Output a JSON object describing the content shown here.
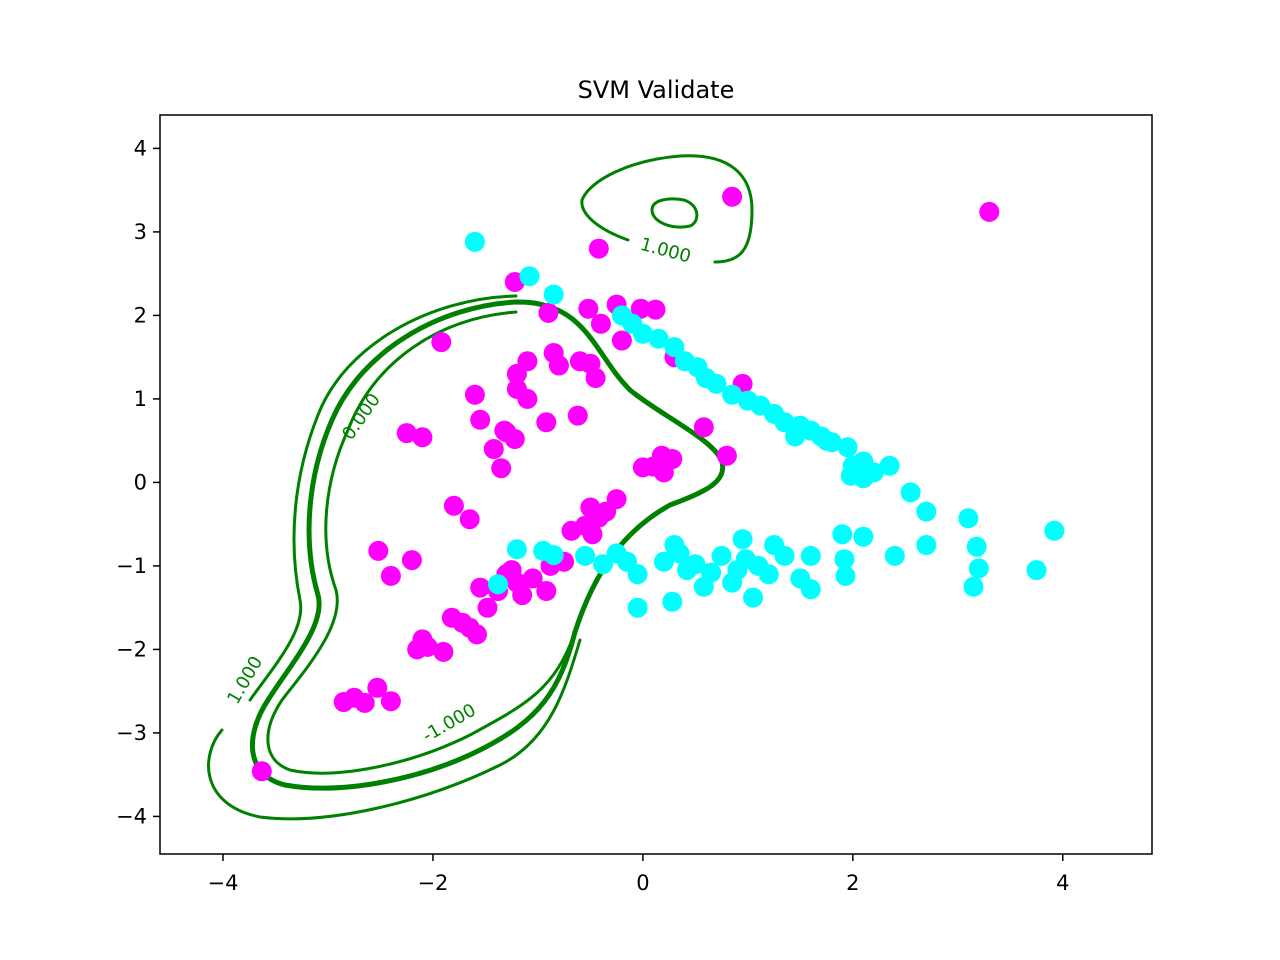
{
  "chart_data": {
    "type": "scatter",
    "title": "SVM Validate",
    "xlabel": "",
    "ylabel": "",
    "xlim": [
      -4.6,
      4.85
    ],
    "ylim": [
      -4.45,
      4.4
    ],
    "xticks": [
      -4,
      -2,
      0,
      2,
      4
    ],
    "yticks": [
      -4,
      -3,
      -2,
      -1,
      0,
      1,
      2,
      3,
      4
    ],
    "xtick_labels": [
      "−4",
      "−2",
      "0",
      "2",
      "4"
    ],
    "ytick_labels": [
      "−4",
      "−3",
      "−2",
      "−1",
      "0",
      "1",
      "2",
      "3",
      "4"
    ],
    "grid": false,
    "series": [
      {
        "color": "#ff00ff",
        "points": [
          [
            -3.63,
            -3.46
          ],
          [
            -2.85,
            -2.63
          ],
          [
            -2.75,
            -2.58
          ],
          [
            -2.65,
            -2.64
          ],
          [
            -2.53,
            -2.46
          ],
          [
            -2.4,
            -2.62
          ],
          [
            -2.52,
            -0.82
          ],
          [
            -2.4,
            -1.12
          ],
          [
            -2.2,
            -0.93
          ],
          [
            -2.25,
            0.59
          ],
          [
            -2.1,
            0.54
          ],
          [
            -2.1,
            -1.88
          ],
          [
            -2.05,
            -1.97
          ],
          [
            -2.15,
            -2.0
          ],
          [
            -1.9,
            -2.03
          ],
          [
            -1.82,
            -1.62
          ],
          [
            -1.72,
            -1.68
          ],
          [
            -1.65,
            -1.74
          ],
          [
            -1.58,
            -1.82
          ],
          [
            -1.55,
            -1.26
          ],
          [
            -1.48,
            -1.5
          ],
          [
            -1.38,
            -1.3
          ],
          [
            -1.3,
            -1.1
          ],
          [
            -1.25,
            -1.05
          ],
          [
            -1.2,
            -1.2
          ],
          [
            -1.15,
            -1.35
          ],
          [
            -1.05,
            -1.15
          ],
          [
            -0.92,
            -1.3
          ],
          [
            -0.88,
            -1.0
          ],
          [
            -0.75,
            -0.95
          ],
          [
            -0.68,
            -0.58
          ],
          [
            -0.55,
            -0.52
          ],
          [
            -0.48,
            -0.62
          ],
          [
            -0.42,
            -0.42
          ],
          [
            -0.35,
            -0.35
          ],
          [
            -0.25,
            -0.2
          ],
          [
            -0.5,
            -0.3
          ],
          [
            -1.8,
            -0.28
          ],
          [
            -1.65,
            -0.44
          ],
          [
            -1.92,
            1.68
          ],
          [
            -1.6,
            1.05
          ],
          [
            -1.55,
            0.75
          ],
          [
            -1.42,
            0.4
          ],
          [
            -1.32,
            0.62
          ],
          [
            -1.22,
            0.52
          ],
          [
            -1.3,
            0.6
          ],
          [
            -1.35,
            0.17
          ],
          [
            -1.2,
            1.12
          ],
          [
            -1.2,
            1.3
          ],
          [
            -1.1,
            1.45
          ],
          [
            -1.1,
            1.0
          ],
          [
            -0.92,
            0.72
          ],
          [
            -0.85,
            1.55
          ],
          [
            -0.8,
            1.4
          ],
          [
            -0.9,
            2.03
          ],
          [
            -0.62,
            0.8
          ],
          [
            -0.6,
            1.45
          ],
          [
            -0.5,
            1.42
          ],
          [
            -0.45,
            1.25
          ],
          [
            -1.22,
            2.4
          ],
          [
            -0.52,
            2.08
          ],
          [
            -0.42,
            2.8
          ],
          [
            -0.4,
            1.9
          ],
          [
            -0.25,
            2.13
          ],
          [
            -0.2,
            1.7
          ],
          [
            -0.02,
            2.08
          ],
          [
            0.12,
            2.07
          ],
          [
            0.3,
            1.5
          ],
          [
            0.0,
            0.18
          ],
          [
            0.1,
            0.19
          ],
          [
            0.18,
            0.32
          ],
          [
            0.28,
            0.28
          ],
          [
            0.2,
            0.12
          ],
          [
            0.58,
            0.66
          ],
          [
            0.8,
            0.32
          ],
          [
            0.95,
            1.18
          ],
          [
            0.85,
            3.42
          ],
          [
            3.3,
            3.24
          ]
        ]
      },
      {
        "color": "#00ffff",
        "points": [
          [
            -1.6,
            2.88
          ],
          [
            -1.08,
            2.47
          ],
          [
            -0.85,
            2.25
          ],
          [
            -0.2,
            2.0
          ],
          [
            -0.1,
            1.9
          ],
          [
            0.0,
            1.78
          ],
          [
            0.15,
            1.72
          ],
          [
            0.3,
            1.62
          ],
          [
            0.4,
            1.45
          ],
          [
            0.52,
            1.38
          ],
          [
            0.6,
            1.25
          ],
          [
            0.7,
            1.18
          ],
          [
            0.85,
            1.05
          ],
          [
            1.0,
            0.98
          ],
          [
            1.12,
            0.92
          ],
          [
            1.25,
            0.82
          ],
          [
            1.35,
            0.72
          ],
          [
            1.5,
            0.68
          ],
          [
            1.6,
            0.62
          ],
          [
            1.7,
            0.55
          ],
          [
            1.8,
            0.48
          ],
          [
            1.95,
            0.42
          ],
          [
            2.0,
            0.2
          ],
          [
            2.1,
            0.25
          ],
          [
            2.2,
            0.12
          ],
          [
            2.35,
            0.2
          ],
          [
            1.98,
            0.08
          ],
          [
            2.1,
            0.05
          ],
          [
            2.55,
            -0.12
          ],
          [
            2.7,
            -0.35
          ],
          [
            3.1,
            -0.43
          ],
          [
            3.18,
            -0.77
          ],
          [
            3.2,
            -1.03
          ],
          [
            3.15,
            -1.25
          ],
          [
            3.75,
            -1.05
          ],
          [
            3.92,
            -0.58
          ],
          [
            2.7,
            -0.75
          ],
          [
            2.4,
            -0.88
          ],
          [
            2.1,
            -0.65
          ],
          [
            1.9,
            -0.62
          ],
          [
            1.92,
            -0.92
          ],
          [
            1.93,
            -1.12
          ],
          [
            1.6,
            -0.88
          ],
          [
            1.6,
            -1.28
          ],
          [
            1.5,
            -1.15
          ],
          [
            1.35,
            -0.88
          ],
          [
            1.25,
            -0.75
          ],
          [
            1.2,
            -1.1
          ],
          [
            1.1,
            -1.0
          ],
          [
            1.05,
            -1.38
          ],
          [
            0.98,
            -0.92
          ],
          [
            0.9,
            -1.05
          ],
          [
            0.85,
            -1.2
          ],
          [
            0.75,
            -0.88
          ],
          [
            0.65,
            -1.08
          ],
          [
            0.58,
            -1.25
          ],
          [
            0.5,
            -0.98
          ],
          [
            0.42,
            -1.05
          ],
          [
            0.35,
            -0.85
          ],
          [
            0.3,
            -0.75
          ],
          [
            0.2,
            -0.95
          ],
          [
            0.28,
            -1.43
          ],
          [
            -0.05,
            -1.5
          ],
          [
            -0.05,
            -1.1
          ],
          [
            -0.15,
            -0.95
          ],
          [
            -0.25,
            -0.85
          ],
          [
            -0.38,
            -0.98
          ],
          [
            -0.55,
            -0.88
          ],
          [
            -0.85,
            -0.87
          ],
          [
            -0.95,
            -0.82
          ],
          [
            -1.2,
            -0.8
          ],
          [
            -1.38,
            -1.22
          ],
          [
            0.95,
            -0.68
          ],
          [
            1.75,
            0.5
          ],
          [
            1.45,
            0.55
          ]
        ]
      }
    ],
    "contours": [
      {
        "level": 0.0,
        "label": "0.000",
        "color": "#008000"
      },
      {
        "level": 1.0,
        "label": "1.000",
        "color": "#008000"
      },
      {
        "level": -1.0,
        "label": "-1.000",
        "color": "#008000"
      },
      {
        "level": 1.0,
        "label": "1.000",
        "color": "#008000"
      }
    ]
  }
}
